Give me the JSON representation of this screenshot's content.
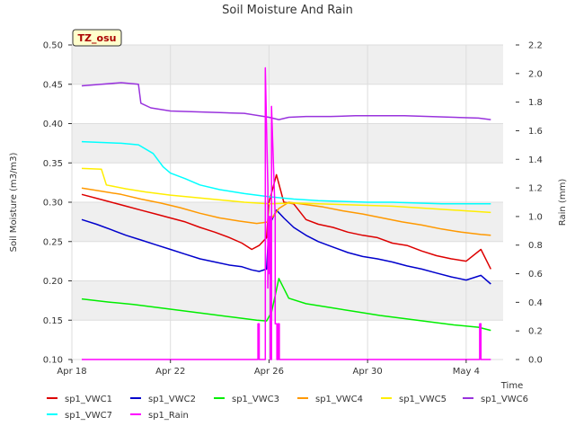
{
  "chart_data": {
    "type": "line",
    "title": "Soil Moisture And Rain",
    "badge": "TZ_osu",
    "xlabel": "Time",
    "ylabel_left": "Soil Moisture (m3/m3)",
    "ylabel_right": "Rain (mm)",
    "x_tick_labels": [
      "Apr 18",
      "Apr 22",
      "Apr 26",
      "Apr 30",
      "May 4"
    ],
    "x_tick_days": [
      0,
      4,
      8,
      12,
      16
    ],
    "x_range_days": [
      0,
      17.5
    ],
    "ylim_left": [
      0.1,
      0.5
    ],
    "ylim_right": [
      0.0,
      2.2
    ],
    "y_ticks_left": [
      "0.10",
      "0.15",
      "0.20",
      "0.25",
      "0.30",
      "0.35",
      "0.40",
      "0.45",
      "0.50"
    ],
    "y_ticks_right": [
      "0.0",
      "0.2",
      "0.4",
      "0.6",
      "0.8",
      "1.0",
      "1.2",
      "1.4",
      "1.6",
      "1.8",
      "2.0",
      "2.2"
    ],
    "grid": true,
    "legend_position": "bottom",
    "series": [
      {
        "name": "sp1_VWC1",
        "color": "#dd0000",
        "axis": "left",
        "x": [
          0.4,
          1.0,
          1.6,
          2.2,
          2.8,
          3.4,
          4.0,
          4.6,
          5.2,
          5.8,
          6.4,
          6.9,
          7.3,
          7.6,
          7.9,
          8.0,
          8.3,
          8.6,
          9.0,
          9.5,
          10.0,
          10.6,
          11.2,
          11.8,
          12.4,
          13.0,
          13.6,
          14.2,
          14.8,
          15.4,
          16.0,
          16.6,
          17.0
        ],
        "y": [
          0.31,
          0.305,
          0.3,
          0.295,
          0.29,
          0.285,
          0.28,
          0.275,
          0.268,
          0.262,
          0.255,
          0.248,
          0.24,
          0.245,
          0.255,
          0.3,
          0.335,
          0.3,
          0.298,
          0.278,
          0.272,
          0.268,
          0.262,
          0.258,
          0.255,
          0.248,
          0.245,
          0.238,
          0.232,
          0.228,
          0.225,
          0.24,
          0.215
        ]
      },
      {
        "name": "sp1_VWC2",
        "color": "#0000cc",
        "axis": "left",
        "x": [
          0.4,
          1.0,
          1.6,
          2.2,
          2.8,
          3.4,
          4.0,
          4.6,
          5.2,
          5.8,
          6.4,
          6.9,
          7.3,
          7.6,
          7.9,
          8.0,
          8.3,
          8.6,
          9.0,
          9.5,
          10.0,
          10.6,
          11.2,
          11.8,
          12.4,
          13.0,
          13.6,
          14.2,
          14.8,
          15.4,
          16.0,
          16.6,
          17.0
        ],
        "y": [
          0.278,
          0.272,
          0.265,
          0.258,
          0.252,
          0.246,
          0.24,
          0.234,
          0.228,
          0.224,
          0.22,
          0.218,
          0.214,
          0.212,
          0.215,
          0.27,
          0.29,
          0.28,
          0.268,
          0.258,
          0.25,
          0.243,
          0.236,
          0.231,
          0.228,
          0.224,
          0.219,
          0.215,
          0.21,
          0.205,
          0.201,
          0.207,
          0.196
        ]
      },
      {
        "name": "sp1_VWC3",
        "color": "#00ee00",
        "axis": "left",
        "x": [
          0.4,
          1.5,
          2.5,
          3.5,
          4.5,
          5.5,
          6.5,
          7.5,
          7.9,
          8.1,
          8.4,
          8.8,
          9.5,
          10.5,
          11.5,
          12.5,
          13.5,
          14.5,
          15.5,
          16.5,
          17.0
        ],
        "y": [
          0.177,
          0.173,
          0.17,
          0.166,
          0.162,
          0.158,
          0.154,
          0.15,
          0.149,
          0.16,
          0.203,
          0.178,
          0.171,
          0.166,
          0.161,
          0.156,
          0.152,
          0.148,
          0.144,
          0.141,
          0.137
        ]
      },
      {
        "name": "sp1_VWC4",
        "color": "#ff9900",
        "axis": "left",
        "x": [
          0.4,
          1.2,
          2.0,
          2.8,
          3.6,
          4.4,
          5.2,
          6.0,
          6.8,
          7.5,
          8.0,
          8.4,
          8.8,
          9.5,
          10.2,
          11.0,
          11.8,
          12.6,
          13.4,
          14.2,
          15.0,
          15.8,
          16.6,
          17.0
        ],
        "y": [
          0.318,
          0.314,
          0.31,
          0.304,
          0.299,
          0.293,
          0.286,
          0.28,
          0.276,
          0.273,
          0.275,
          0.292,
          0.3,
          0.297,
          0.294,
          0.289,
          0.285,
          0.28,
          0.275,
          0.271,
          0.266,
          0.262,
          0.259,
          0.258
        ]
      },
      {
        "name": "sp1_VWC5",
        "color": "#ffee00",
        "axis": "left",
        "x": [
          0.4,
          1.2,
          1.4,
          2.2,
          3.0,
          4.0,
          5.0,
          6.0,
          7.0,
          8.0,
          9.0,
          10.0,
          11.0,
          12.0,
          13.0,
          14.0,
          15.0,
          16.0,
          17.0
        ],
        "y": [
          0.343,
          0.342,
          0.322,
          0.317,
          0.313,
          0.309,
          0.306,
          0.303,
          0.3,
          0.298,
          0.299,
          0.298,
          0.297,
          0.296,
          0.295,
          0.293,
          0.291,
          0.289,
          0.287
        ]
      },
      {
        "name": "sp1_VWC6",
        "color": "#9933dd",
        "axis": "left",
        "x": [
          0.4,
          1.2,
          2.0,
          2.7,
          2.8,
          3.2,
          4.0,
          5.0,
          6.0,
          7.0,
          7.6,
          8.0,
          8.4,
          8.8,
          9.5,
          10.5,
          11.5,
          12.5,
          13.5,
          14.5,
          15.5,
          16.5,
          17.0
        ],
        "y": [
          0.448,
          0.45,
          0.452,
          0.45,
          0.426,
          0.42,
          0.416,
          0.415,
          0.414,
          0.413,
          0.41,
          0.408,
          0.405,
          0.408,
          0.409,
          0.409,
          0.41,
          0.41,
          0.41,
          0.409,
          0.408,
          0.407,
          0.405
        ]
      },
      {
        "name": "sp1_VWC7",
        "color": "#00ffff",
        "axis": "left",
        "x": [
          0.4,
          1.2,
          2.0,
          2.7,
          3.3,
          3.7,
          4.0,
          4.6,
          5.2,
          6.0,
          7.0,
          8.0,
          9.0,
          10.0,
          11.0,
          12.0,
          13.0,
          14.0,
          15.0,
          16.0,
          17.0
        ],
        "y": [
          0.377,
          0.376,
          0.375,
          0.373,
          0.362,
          0.345,
          0.337,
          0.33,
          0.322,
          0.316,
          0.311,
          0.307,
          0.304,
          0.302,
          0.301,
          0.3,
          0.3,
          0.299,
          0.298,
          0.298,
          0.298
        ]
      },
      {
        "name": "sp1_Rain",
        "color": "#ff00ff",
        "axis": "right",
        "x": [
          0.4,
          7.55,
          7.55,
          7.6,
          7.6,
          7.85,
          7.85,
          7.95,
          7.95,
          8.0,
          8.0,
          8.05,
          8.05,
          8.1,
          8.1,
          8.25,
          8.25,
          8.32,
          8.32,
          8.37,
          8.37,
          8.42,
          8.42,
          8.5,
          8.5,
          16.55,
          16.55,
          16.6,
          16.6,
          17.0
        ],
        "y": [
          0.0,
          0.0,
          0.25,
          0.25,
          0.0,
          0.0,
          2.04,
          1.2,
          0.5,
          1.0,
          0.6,
          1.0,
          0.0,
          0.0,
          1.77,
          1.0,
          0.25,
          0.25,
          0.0,
          0.0,
          0.25,
          0.25,
          0.0,
          0.0,
          0.0,
          0.0,
          0.25,
          0.25,
          0.0,
          0.0
        ]
      }
    ]
  }
}
